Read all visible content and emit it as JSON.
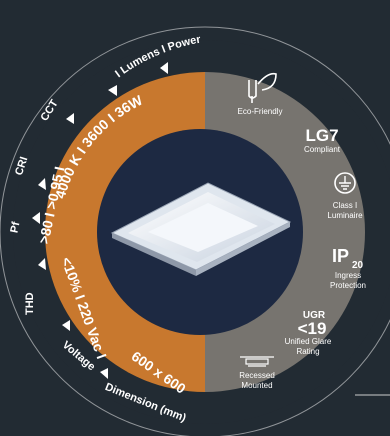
{
  "outer_ring_labels": {
    "lumens_power": "I Lumens  I  Power",
    "cct": "CCT",
    "cri": "CRI",
    "pf": "Pf",
    "thd": "THD",
    "voltage": "Voltage",
    "dimension": "Dimension (mm)",
    "separator": "I"
  },
  "orange_ring_values": {
    "lumens_power": "4000 K  I  3600  I  36W",
    "cri_pf": ">80  I  >0.95  I",
    "thd_voltage": "<10%  I  220 Vac  I",
    "dimension": "600 x 600"
  },
  "features": {
    "eco": {
      "icon": "plug-leaf-icon",
      "label": "Eco-Friendly"
    },
    "lg7": {
      "title": "LG7",
      "label": "Compliant"
    },
    "class1": {
      "icon": "earth-ground-icon",
      "label_line1": "Class I",
      "label_line2": "Luminaire"
    },
    "ip": {
      "title": "IP",
      "sub": "20",
      "label_line1": "Ingress",
      "label_line2": "Protection"
    },
    "ugr": {
      "top": "UGR",
      "value": "<19",
      "label_line1": "Unified Glare",
      "label_line2": "Rating"
    },
    "recessed": {
      "icon": "recessed-mount-icon",
      "label_line1": "Recessed",
      "label_line2": "Mounted"
    }
  },
  "colors": {
    "background": "#222b33",
    "orange": "#c8782e",
    "gray": "#77746f",
    "center": "#1d2942",
    "text": "#ffffff"
  }
}
